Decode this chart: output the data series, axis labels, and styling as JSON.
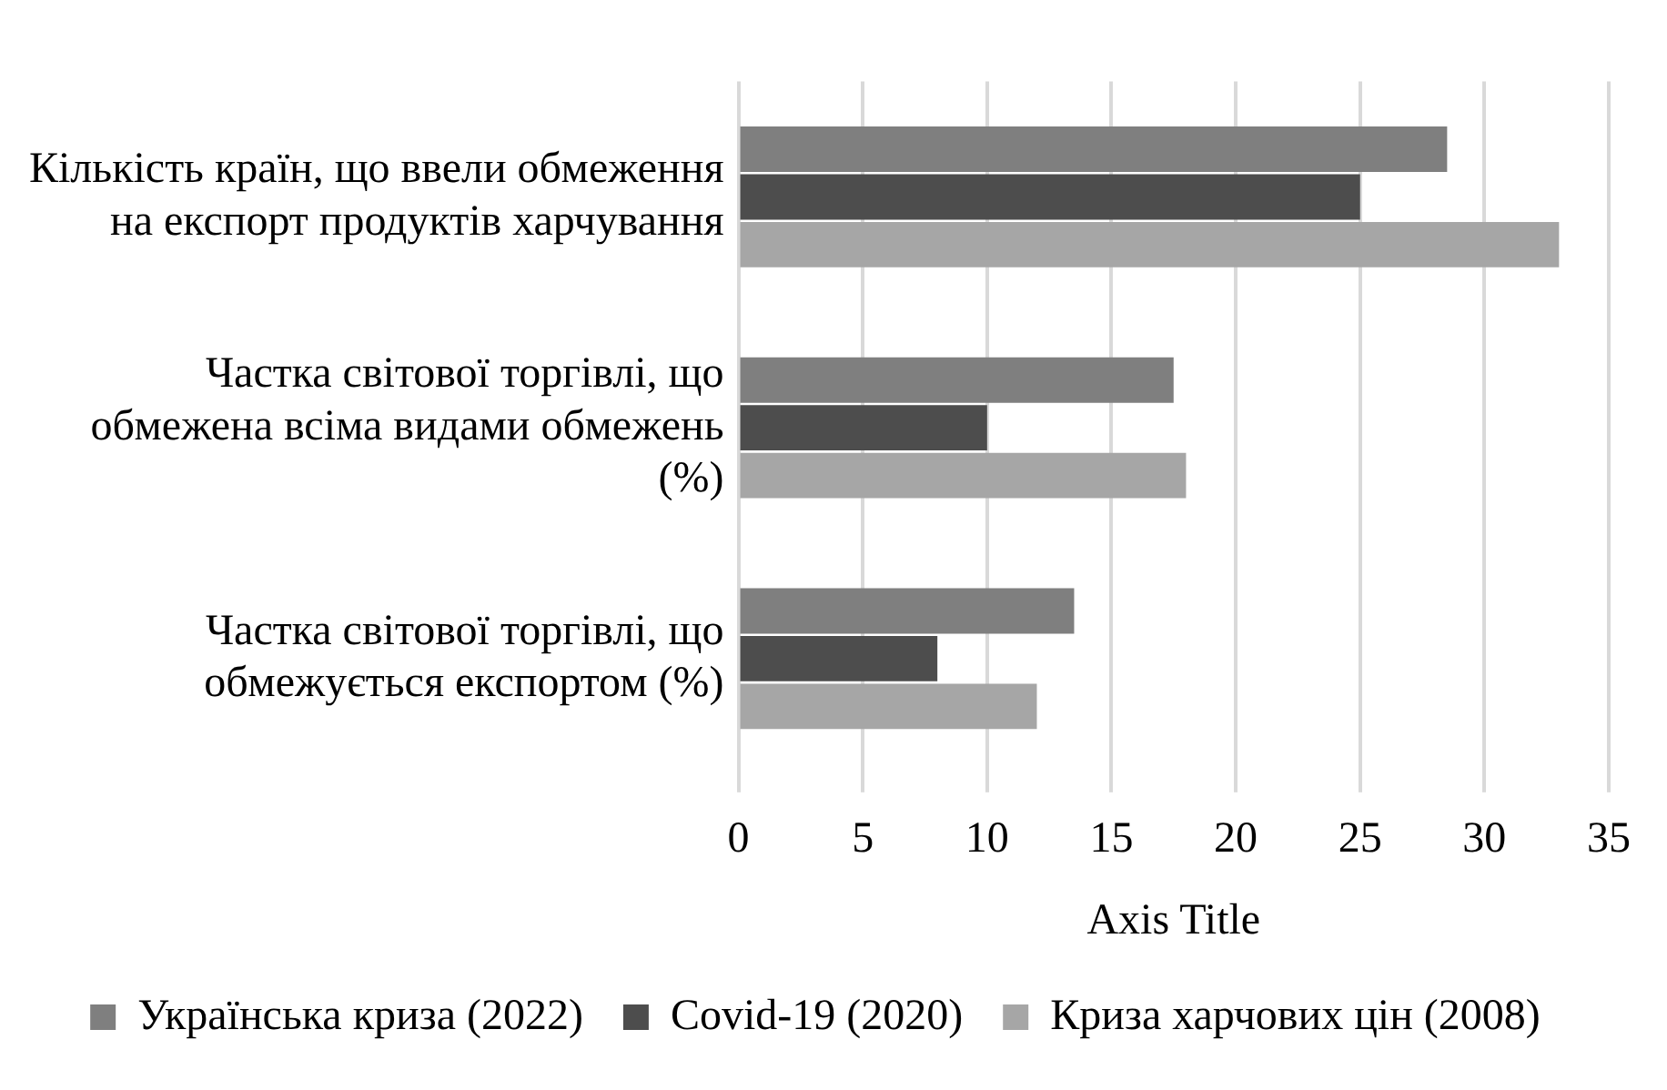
{
  "chart_data": {
    "type": "bar",
    "orientation": "horizontal",
    "xlabel": "Axis Title",
    "categories": [
      "Кількість країн, що ввели обмеження на експорт продуктів харчування",
      "Частка світової торгівлі, що обмежена всіма видами обмежень (%)",
      "Частка світової торгівлі, що обмежується експортом (%)"
    ],
    "series": [
      {
        "name": "Українська криза (2022)",
        "color": "#7f7f7f",
        "values": [
          28.5,
          17.5,
          13.5
        ]
      },
      {
        "name": "Covid-19 (2020)",
        "color": "#4d4d4d",
        "values": [
          25,
          10,
          8
        ]
      },
      {
        "name": "Криза харчових цін (2008)",
        "color": "#a6a6a6",
        "values": [
          33,
          18,
          12
        ]
      }
    ],
    "xlim": [
      0,
      35
    ],
    "xticks": [
      0,
      5,
      10,
      15,
      20,
      25,
      30,
      35
    ],
    "grid": "x",
    "legend": "bottom"
  }
}
